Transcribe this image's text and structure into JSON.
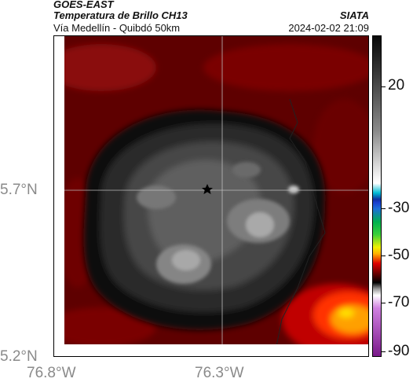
{
  "header": {
    "satellite": "GOES-EAST",
    "product": "Temperatura de Brillo CH13",
    "region": "Vía Medellín - Quibdó 50km",
    "organization": "SIATA",
    "datetime": "2024-02-02 21:09"
  },
  "axes": {
    "lat_labels": [
      "5.7°N",
      "5.2°N"
    ],
    "lon_labels": [
      "76.8°W",
      "76.3°W"
    ]
  },
  "colorbar": {
    "tick_labels": [
      "20",
      "-30",
      "-50",
      "-70",
      "-90"
    ],
    "colors": {
      "warm": "#7a0000",
      "cold_core": "#8c8c8c",
      "mid": "#2b2b2b"
    }
  },
  "map": {
    "marker_icon": "star-icon"
  }
}
